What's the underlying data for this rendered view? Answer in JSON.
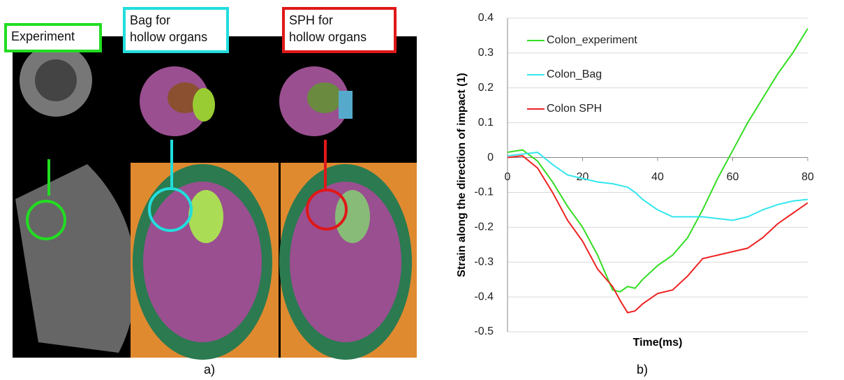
{
  "panel_a": {
    "labels": [
      {
        "lines": [
          "Experiment"
        ],
        "color": "#22dd22"
      },
      {
        "lines": [
          "Bag for",
          "hollow organs"
        ],
        "color": "#22dddd"
      },
      {
        "lines": [
          "SPH for",
          "hollow organs"
        ],
        "color": "#e01818"
      }
    ],
    "caption": "a)"
  },
  "panel_b_caption": "b)",
  "chart_data": {
    "type": "line",
    "xlabel": "Time(ms)",
    "ylabel": "Strain along the direction of impact (1)",
    "x": [
      0,
      4,
      8,
      12,
      16,
      20,
      24,
      28,
      30,
      32,
      34,
      36,
      40,
      44,
      48,
      52,
      56,
      60,
      64,
      68,
      72,
      76,
      80
    ],
    "series": [
      {
        "name": "Colon_experiment",
        "color": "#33dd22",
        "values": [
          0.015,
          0.022,
          -0.01,
          -0.07,
          -0.14,
          -0.2,
          -0.28,
          -0.38,
          -0.385,
          -0.37,
          -0.375,
          -0.35,
          -0.31,
          -0.28,
          -0.23,
          -0.15,
          -0.06,
          0.02,
          0.1,
          0.17,
          0.24,
          0.3,
          0.37
        ]
      },
      {
        "name": "Colon_Bag",
        "color": "#33e6ee",
        "values": [
          0.005,
          0.01,
          0.015,
          -0.02,
          -0.05,
          -0.06,
          -0.07,
          -0.075,
          -0.08,
          -0.085,
          -0.1,
          -0.12,
          -0.15,
          -0.17,
          -0.17,
          -0.17,
          -0.175,
          -0.18,
          -0.17,
          -0.15,
          -0.135,
          -0.125,
          -0.12
        ]
      },
      {
        "name": "Colon SPH",
        "color": "#ee2222",
        "values": [
          0,
          0.005,
          -0.03,
          -0.1,
          -0.18,
          -0.24,
          -0.32,
          -0.37,
          -0.41,
          -0.445,
          -0.44,
          -0.42,
          -0.39,
          -0.38,
          -0.34,
          -0.29,
          -0.28,
          -0.27,
          -0.26,
          -0.23,
          -0.19,
          -0.16,
          -0.13
        ]
      }
    ],
    "xlim": [
      0,
      80
    ],
    "xticks": [
      0,
      20,
      40,
      60,
      80
    ],
    "ylim": [
      -0.5,
      0.4
    ],
    "yticks": [
      -0.5,
      -0.4,
      -0.3,
      -0.2,
      -0.1,
      0,
      0.1,
      0.2,
      0.3,
      0.4
    ],
    "grid": true
  }
}
